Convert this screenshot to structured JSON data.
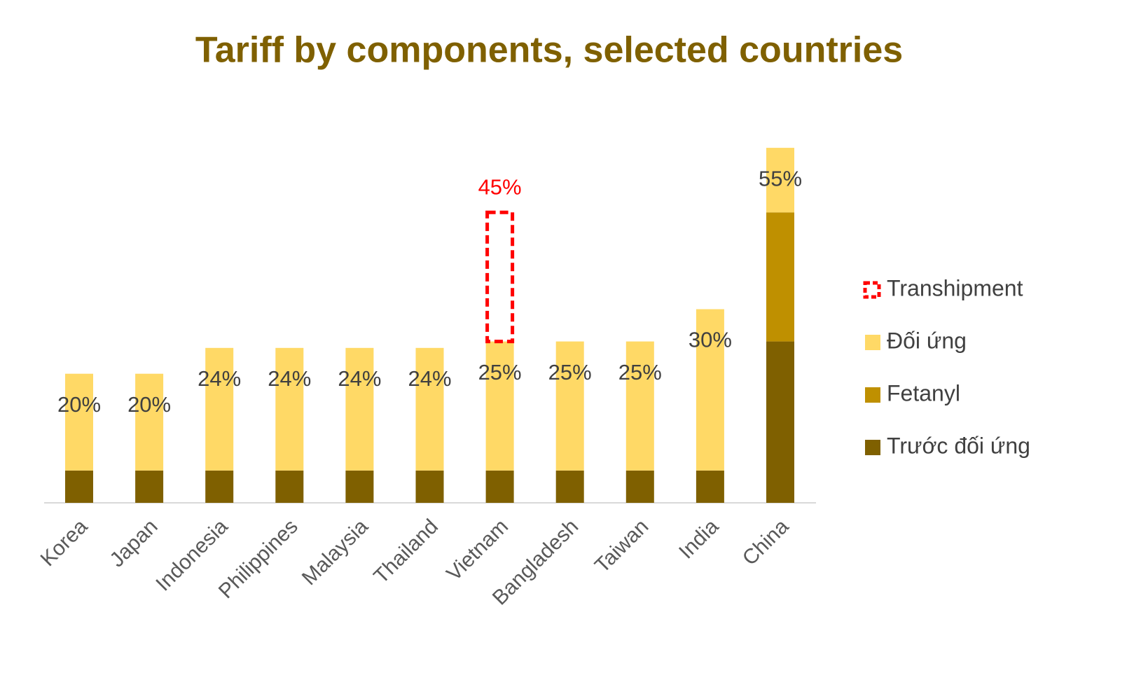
{
  "chart_data": {
    "type": "bar",
    "stacked": true,
    "title": "Tariff by components, selected countries",
    "categories": [
      "Korea",
      "Japan",
      "Indonesia",
      "Philippines",
      "Malaysia",
      "Thailand",
      "Vietnam",
      "Bangladesh",
      "Taiwan",
      "India",
      "China"
    ],
    "series": [
      {
        "name": "Trước đối ứng",
        "color": "#7f6000",
        "values": [
          5,
          5,
          5,
          5,
          5,
          5,
          5,
          5,
          5,
          5,
          25
        ]
      },
      {
        "name": "Fetanyl",
        "color": "#bf9000",
        "values": [
          null,
          null,
          null,
          null,
          null,
          null,
          null,
          null,
          null,
          null,
          20
        ]
      },
      {
        "name": "Đối ứng",
        "color": "#ffd966",
        "values": [
          15,
          15,
          19,
          19,
          19,
          19,
          20,
          20,
          20,
          25,
          10
        ]
      },
      {
        "name": "Transhipment",
        "color": "#ff0000",
        "dashed": true,
        "values": [
          null,
          null,
          null,
          null,
          null,
          null,
          20,
          null,
          null,
          null,
          null
        ]
      }
    ],
    "totals": {
      "values": [
        20,
        20,
        24,
        24,
        24,
        24,
        25,
        25,
        25,
        30,
        55
      ],
      "value_labels": [
        "20%",
        "20%",
        "24%",
        "24%",
        "24%",
        "24%",
        "25%",
        "25%",
        "25%",
        "30%",
        "55%"
      ]
    },
    "annotations": [
      {
        "category": "Vietnam",
        "value": 45,
        "label": "45%",
        "color": "#ff0000"
      }
    ],
    "ylim": [
      0,
      60
    ],
    "legend": "right"
  }
}
